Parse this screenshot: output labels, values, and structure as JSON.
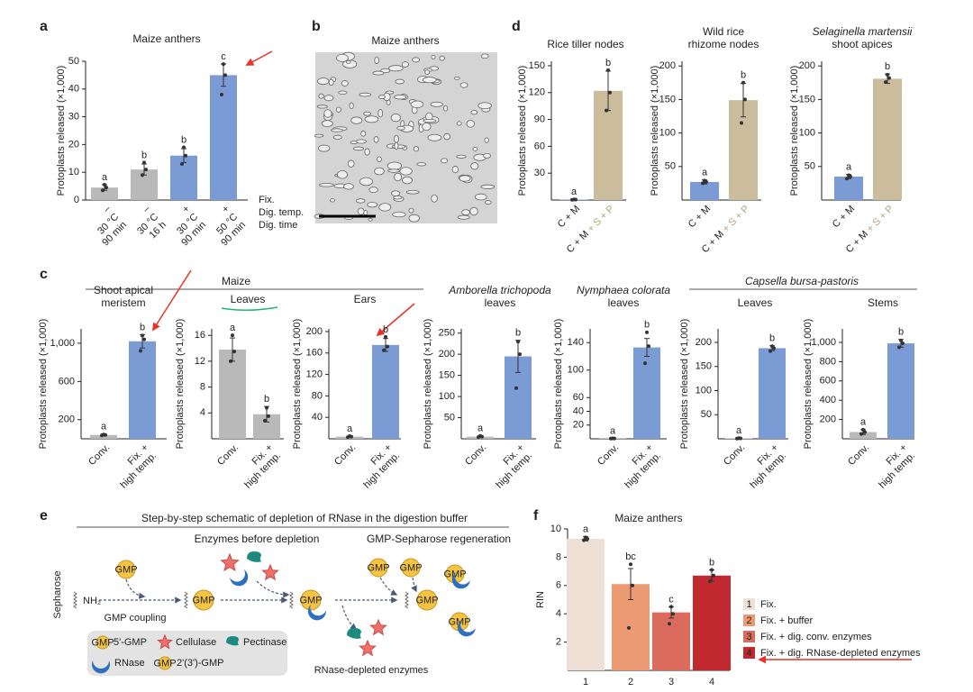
{
  "panels": [
    "a",
    "b",
    "c",
    "d",
    "e",
    "f"
  ],
  "image_panel": {
    "title": "Maize anthers"
  },
  "panel_c_groups": [
    "Maize",
    "Capsella bursa-pastoris"
  ],
  "group_style": [
    "normal",
    "italic"
  ],
  "chart_data": [
    {
      "type": "bar",
      "title": "Maize anthers",
      "ylabel": "Protoplasts released (×1,000)",
      "categories": [
        [
          "–",
          "30 °C",
          "90 min"
        ],
        [
          "–",
          "30 °C",
          "16 h"
        ],
        [
          "+",
          "30 °C",
          "90 min"
        ],
        [
          "+",
          "50 °C",
          "90 min"
        ]
      ],
      "row_labels": [
        "Fix.",
        "Dig. temp.",
        "Dig. time"
      ],
      "values": [
        4.5,
        11,
        16,
        45
      ],
      "errors": [
        1,
        2,
        2.5,
        4
      ],
      "points": [
        [
          3.5,
          4.5,
          5.5
        ],
        [
          9,
          11,
          13.5
        ],
        [
          13,
          16,
          19
        ],
        [
          38,
          45,
          49
        ]
      ],
      "letters": [
        "a",
        "b",
        "b",
        "c"
      ],
      "colors": [
        "#b9b9b9",
        "#b9b9b9",
        "#7b9bd4",
        "#7b9bd4"
      ],
      "ylim": [
        0,
        50
      ],
      "yticks": [
        0,
        10,
        20,
        30,
        40,
        50
      ]
    },
    {
      "type": "bar",
      "title": "Rice tiller nodes",
      "ylabel": "Protoplasts released (×1,000)",
      "categories": [
        [
          "C + M"
        ],
        [
          "C + M",
          "+ S + P"
        ]
      ],
      "category_layout": "inline",
      "category_colors": [
        "#222222",
        "#b5a27a"
      ],
      "values": [
        0.5,
        122
      ],
      "errors": [
        0.3,
        22
      ],
      "points": [
        [
          0.3,
          0.5,
          0.6
        ],
        [
          100,
          120,
          145
        ]
      ],
      "letters": [
        "a",
        "b"
      ],
      "colors": [
        "#7b9bd4",
        "#cbbd9c"
      ],
      "ylim": [
        0,
        155
      ],
      "yticks": [
        30,
        60,
        90,
        120,
        150
      ]
    },
    {
      "type": "bar",
      "title": [
        "Wild rice",
        "rhizome nodes"
      ],
      "ylabel": "Protoplasts released (×1,000)",
      "categories": [
        [
          "C + M"
        ],
        [
          "C + M",
          "+ S + P"
        ]
      ],
      "category_layout": "inline",
      "category_colors": [
        "#222222",
        "#b5a27a"
      ],
      "values": [
        27,
        149
      ],
      "errors": [
        3,
        25
      ],
      "points": [
        [
          25,
          27,
          29
        ],
        [
          115,
          150,
          175
        ]
      ],
      "letters": [
        "a",
        "b"
      ],
      "colors": [
        "#7b9bd4",
        "#cbbd9c"
      ],
      "ylim": [
        0,
        207
      ],
      "yticks": [
        50,
        100,
        150,
        200
      ]
    },
    {
      "type": "bar",
      "title": [
        "Selaginella martensii",
        "shoot apices"
      ],
      "title_style": [
        "italic",
        "normal"
      ],
      "ylabel": "Protoplasts released (×1,000)",
      "categories": [
        [
          "C + M"
        ],
        [
          "C + M",
          "+ S + P"
        ]
      ],
      "category_layout": "inline",
      "category_colors": [
        "#222222",
        "#b5a27a"
      ],
      "values": [
        35,
        181
      ],
      "errors": [
        3,
        7
      ],
      "points": [
        [
          32,
          35,
          37
        ],
        [
          176,
          182,
          187
        ]
      ],
      "letters": [
        "a",
        "b"
      ],
      "colors": [
        "#7b9bd4",
        "#cbbd9c"
      ],
      "ylim": [
        0,
        207
      ],
      "yticks": [
        50,
        100,
        150,
        200
      ]
    },
    {
      "type": "bar",
      "title": [
        "Shoot apical",
        "meristem"
      ],
      "ylabel": "Protoplasts released (×1,000)",
      "categories": [
        [
          "Conv."
        ],
        [
          "Fix. +",
          "high temp."
        ]
      ],
      "values": [
        40,
        1020
      ],
      "errors": [
        10,
        70
      ],
      "points": [
        [
          35,
          40,
          45
        ],
        [
          920,
          1040,
          1080
        ]
      ],
      "letters": [
        "a",
        "b"
      ],
      "colors": [
        "#b9b9b9",
        "#7b9bd4"
      ],
      "ylim": [
        0,
        1150
      ],
      "yticks": [
        200,
        600,
        {
          "value": 1000,
          "label": "1,000"
        }
      ]
    },
    {
      "type": "bar",
      "title": "Leaves",
      "ylabel": "Protoplasts released (×1,000)",
      "categories": [
        [
          "Conv."
        ],
        [
          "Fix. +",
          "high temp."
        ]
      ],
      "values": [
        13.8,
        3.8
      ],
      "errors": [
        1.8,
        1.2
      ],
      "points": [
        [
          12,
          13.5,
          16
        ],
        [
          2.8,
          3.5,
          4.8
        ]
      ],
      "letters": [
        "a",
        "b"
      ],
      "colors": [
        "#b9b9b9",
        "#b9b9b9"
      ],
      "ylim": [
        0,
        17
      ],
      "yticks": [
        4,
        8,
        12,
        16
      ]
    },
    {
      "type": "bar",
      "title": "Ears",
      "ylabel": "Protoplasts released (×1,000)",
      "categories": [
        [
          "Conv."
        ],
        [
          "Fix. +",
          "high temp."
        ]
      ],
      "values": [
        4,
        175
      ],
      "errors": [
        1,
        12
      ],
      "points": [
        [
          3,
          4,
          5
        ],
        [
          165,
          172,
          190
        ]
      ],
      "letters": [
        "a",
        "b"
      ],
      "colors": [
        "#b9b9b9",
        "#7b9bd4"
      ],
      "ylim": [
        0,
        205
      ],
      "yticks": [
        40,
        80,
        120,
        160,
        200
      ]
    },
    {
      "type": "bar",
      "title": [
        "Amborella trichopoda",
        "leaves"
      ],
      "title_style": [
        "italic",
        "normal"
      ],
      "ylabel": "Protoplasts released (×1,000)",
      "categories": [
        [
          "Conv."
        ],
        [
          "Fix. +",
          "high temp."
        ]
      ],
      "values": [
        5,
        195
      ],
      "errors": [
        1,
        38
      ],
      "points": [
        [
          4,
          5,
          7
        ],
        [
          120,
          200,
          230
        ]
      ],
      "letters": [
        "a",
        "b"
      ],
      "colors": [
        "#b9b9b9",
        "#7b9bd4"
      ],
      "ylim": [
        0,
        260
      ],
      "yticks": [
        50,
        100,
        150,
        200,
        250
      ]
    },
    {
      "type": "bar",
      "title": [
        "Nymphaea colorata",
        "leaves"
      ],
      "title_style": [
        "italic",
        "normal"
      ],
      "ylabel": "Protoplasts released (×1,000)",
      "categories": [
        [
          "Conv."
        ],
        [
          "Fix. +",
          "high temp."
        ]
      ],
      "values": [
        0.5,
        133
      ],
      "errors": [
        0.3,
        13
      ],
      "points": [
        [
          0.3,
          0.5,
          0.7
        ],
        [
          110,
          135,
          155
        ]
      ],
      "letters": [
        "a",
        "b"
      ],
      "colors": [
        "#b9b9b9",
        "#7b9bd4"
      ],
      "ylim": [
        0,
        160
      ],
      "yticks": [
        20,
        40,
        60,
        100,
        140
      ]
    },
    {
      "type": "bar",
      "title": "Leaves",
      "ylabel": "Protoplasts released (×1,000)",
      "categories": [
        [
          "Conv."
        ],
        [
          "Fix. +",
          "high temp."
        ]
      ],
      "values": [
        1,
        188
      ],
      "errors": [
        1,
        5
      ],
      "points": [
        [
          0.5,
          1,
          1.5
        ],
        [
          182,
          188,
          192
        ]
      ],
      "letters": [
        "a",
        "b"
      ],
      "colors": [
        "#b9b9b9",
        "#7b9bd4"
      ],
      "ylim": [
        0,
        228
      ],
      "yticks": [
        50,
        100,
        150,
        200
      ]
    },
    {
      "type": "bar",
      "title": "Stems",
      "ylabel": "Protoplasts released (×1,000)",
      "categories": [
        [
          "Conv."
        ],
        [
          "Fix. +",
          "high temp."
        ]
      ],
      "values": [
        70,
        990
      ],
      "errors": [
        25,
        40
      ],
      "points": [
        [
          50,
          70,
          95
        ],
        [
          950,
          990,
          1020
        ]
      ],
      "letters": [
        "a",
        "b"
      ],
      "colors": [
        "#b9b9b9",
        "#7b9bd4"
      ],
      "ylim": [
        0,
        1140
      ],
      "yticks": [
        200,
        400,
        600,
        800,
        {
          "value": 1000,
          "label": "1,000"
        }
      ]
    },
    {
      "type": "bar",
      "title": "Maize anthers",
      "ylabel": "RIN",
      "categories": [
        1,
        2,
        3,
        4
      ],
      "values": [
        9.3,
        6.1,
        4.1,
        6.7
      ],
      "errors": [
        0.15,
        1.1,
        0.4,
        0.4
      ],
      "points": [
        [
          9.2,
          9.3,
          9.4
        ],
        [
          3,
          6,
          7.5
        ],
        [
          3.3,
          4,
          4.5
        ],
        [
          6.3,
          6.7,
          7.1
        ]
      ],
      "letters": [
        "a",
        "bc",
        "c",
        "b"
      ],
      "colors": [
        "#efe0d6",
        "#eb9a72",
        "#da6b5d",
        "#c1282f"
      ],
      "legend_labels": [
        "Fix.",
        "Fix. + buffer",
        "Fix. + dig. conv. enzymes",
        "Fix. + dig. RNase-depleted enzymes"
      ],
      "ylim": [
        0,
        10
      ],
      "yticks": [
        2,
        4,
        6,
        8,
        10
      ]
    }
  ],
  "schematic": {
    "title": "Step-by-step schematic of depletion of RNase in the digestion buffer",
    "stages": [
      "Enzymes before depletion",
      "GMP-Sepharose regeneration"
    ],
    "matrix": "Sepharose",
    "amine": "NH₂",
    "coupling": "GMP coupling",
    "gmp": "GMP",
    "result": "RNase-depleted enzymes",
    "legend": [
      "5'-GMP",
      "Cellulase",
      "Pectinase",
      "RNase",
      "2'(3')-GMP"
    ]
  }
}
